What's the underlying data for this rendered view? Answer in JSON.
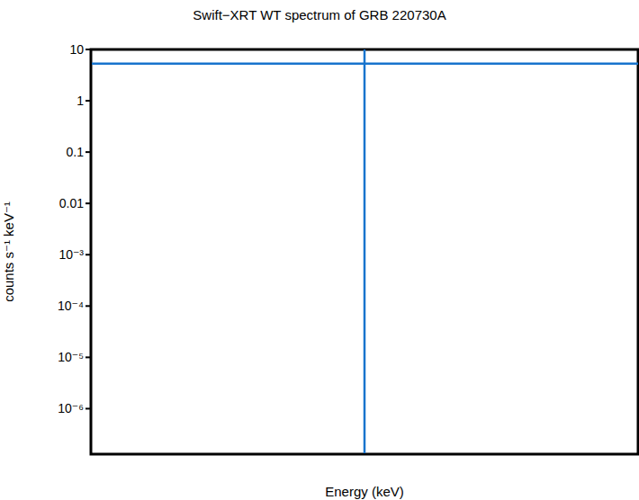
{
  "chart_data": {
    "type": "line",
    "title": "Swift−XRT WT spectrum of GRB 220730A",
    "x_label": "Energy (keV)",
    "y_label": "counts s⁻¹ keV⁻¹",
    "log": "y",
    "tick_labels": "y",
    "xlim": [
      0,
      1
    ],
    "ylim": [
      1.3e-07,
      10
    ],
    "yticks": [
      10,
      1,
      0.1,
      0.01,
      {
        "value": 0.001,
        "label": "10⁻³"
      },
      {
        "value": 0.0001,
        "label": "10⁻⁴"
      },
      {
        "value": 1e-05,
        "label": "10⁻⁵"
      },
      {
        "value": 1e-06,
        "label": "10⁻⁶"
      }
    ],
    "series": [
      {
        "color": "#1874cd",
        "x": [
          0,
          1
        ],
        "values": [
          5.3,
          5.3
        ]
      },
      {
        "color": "#1874cd",
        "x": [
          0.5,
          0.5
        ],
        "values": [
          1.3e-07,
          10
        ]
      }
    ]
  }
}
